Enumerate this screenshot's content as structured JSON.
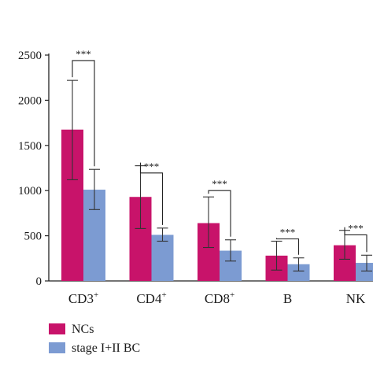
{
  "chart_data": {
    "type": "bar",
    "categories": [
      "CD3",
      "CD4",
      "CD8",
      "B",
      "NK"
    ],
    "category_superscripts": [
      "+",
      "+",
      "+",
      "",
      ""
    ],
    "series": [
      {
        "name": "NCs",
        "color": "#c8136a",
        "values": [
          1675,
          930,
          640,
          280,
          395
        ],
        "error_low": [
          1120,
          580,
          370,
          120,
          240
        ],
        "error_high": [
          2220,
          1275,
          930,
          440,
          560
        ]
      },
      {
        "name": "stage I+II BC",
        "color": "#7c9bd2",
        "values": [
          1010,
          510,
          335,
          185,
          200
        ],
        "error_low": [
          790,
          440,
          220,
          110,
          110
        ],
        "error_high": [
          1235,
          585,
          455,
          255,
          285
        ]
      }
    ],
    "significance": [
      "***",
      "***",
      "***",
      "***",
      "***"
    ],
    "significance_levels": [
      2440,
      1195,
      1000,
      465,
      510
    ],
    "yticks": [
      0,
      500,
      1000,
      1500,
      2000,
      2500
    ],
    "ylim": [
      0,
      2500
    ],
    "title": "",
    "xlabel": "",
    "ylabel": "",
    "legend_position": "bottom-left"
  }
}
